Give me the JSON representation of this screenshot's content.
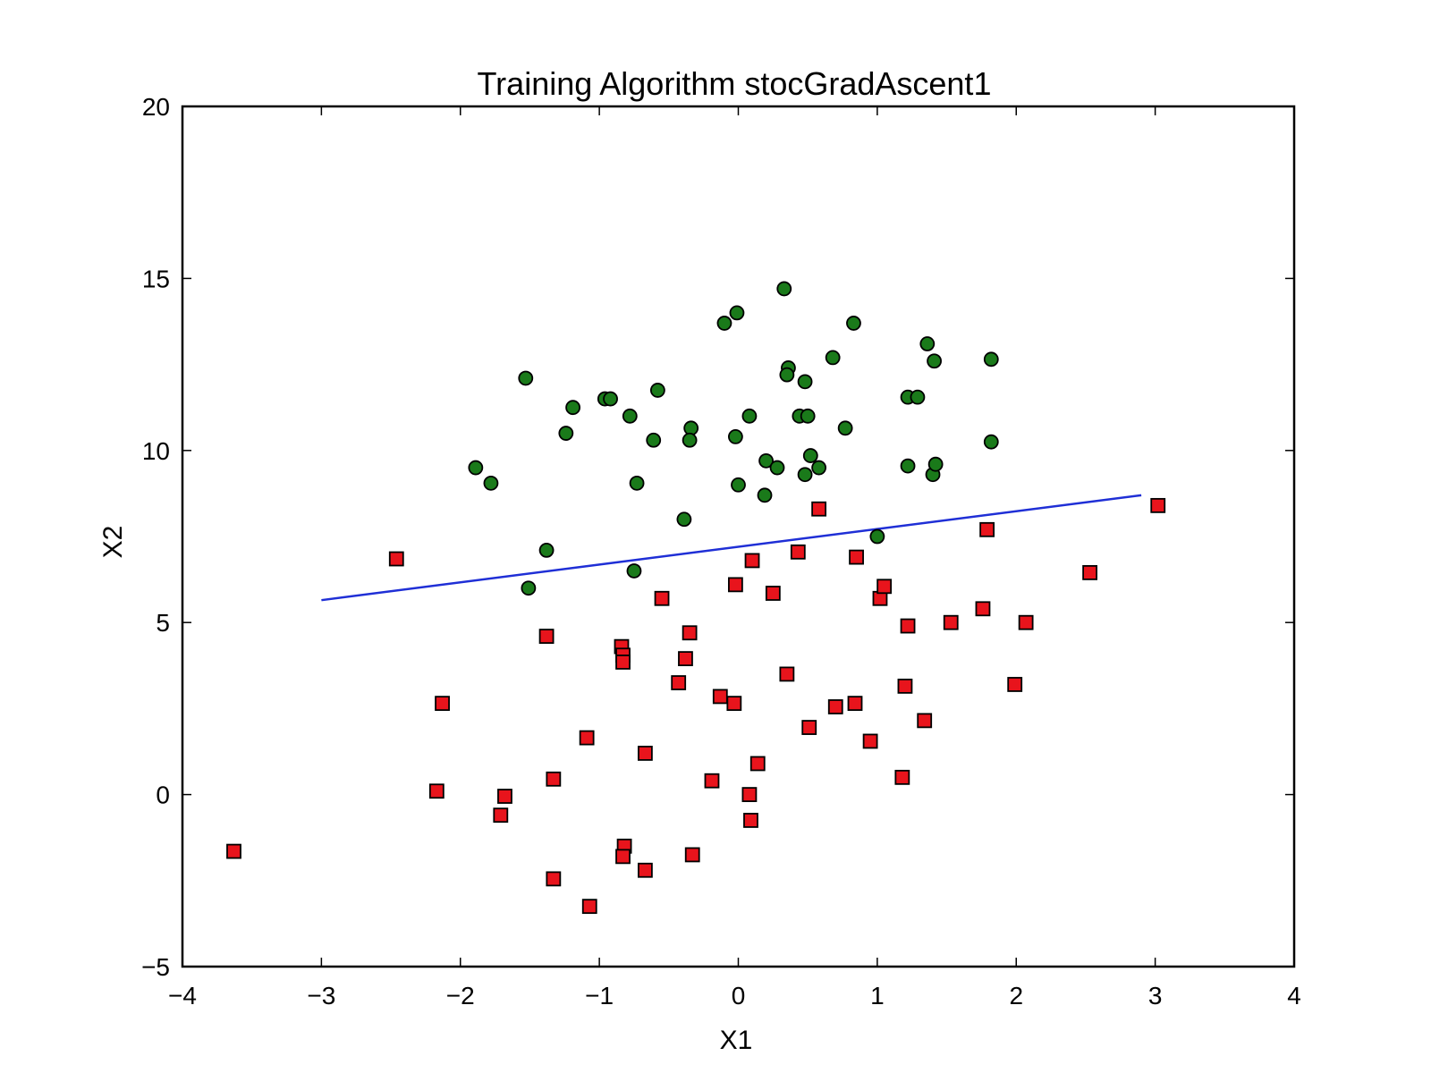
{
  "chart_data": {
    "type": "scatter",
    "title": "Training Algorithm stocGradAscent1",
    "xlabel": "X1",
    "ylabel": "X2",
    "xlim": [
      -4,
      4
    ],
    "ylim": [
      -5,
      20
    ],
    "x_ticks": [
      -4,
      -3,
      -2,
      -1,
      0,
      1,
      2,
      3,
      4
    ],
    "y_ticks": [
      -5,
      0,
      5,
      10,
      15,
      20
    ],
    "x_tick_labels": [
      "−4",
      "−3",
      "−2",
      "−1",
      "0",
      "1",
      "2",
      "3",
      "4"
    ],
    "y_tick_labels": [
      "−5",
      "0",
      "5",
      "10",
      "15",
      "20"
    ],
    "grid": false,
    "colors": {
      "class1": "#1a7a1a",
      "class0": "#e8141c",
      "boundary": "#1f2fd6",
      "marker_edge": "#000000"
    },
    "series": [
      {
        "marker": "circle",
        "color": "#1a7a1a",
        "points": [
          [
            -1.53,
            12.1
          ],
          [
            -1.89,
            9.5
          ],
          [
            -1.78,
            9.05
          ],
          [
            -1.38,
            7.1
          ],
          [
            -1.51,
            6.0
          ],
          [
            -1.24,
            10.5
          ],
          [
            -1.19,
            11.25
          ],
          [
            -0.96,
            11.5
          ],
          [
            -0.92,
            11.5
          ],
          [
            -0.78,
            11.0
          ],
          [
            -0.73,
            9.05
          ],
          [
            -0.75,
            6.5
          ],
          [
            -0.61,
            10.3
          ],
          [
            -0.58,
            11.75
          ],
          [
            -0.39,
            8.0
          ],
          [
            -0.34,
            10.65
          ],
          [
            -0.35,
            10.3
          ],
          [
            -0.1,
            13.7
          ],
          [
            -0.01,
            14.0
          ],
          [
            -0.02,
            10.4
          ],
          [
            0.0,
            9.0
          ],
          [
            0.08,
            11.0
          ],
          [
            0.2,
            9.7
          ],
          [
            0.19,
            8.7
          ],
          [
            0.28,
            9.5
          ],
          [
            0.33,
            14.7
          ],
          [
            0.36,
            12.4
          ],
          [
            0.35,
            12.2
          ],
          [
            0.44,
            11.0
          ],
          [
            0.48,
            12.0
          ],
          [
            0.5,
            11.0
          ],
          [
            0.52,
            9.85
          ],
          [
            0.48,
            9.3
          ],
          [
            0.58,
            9.5
          ],
          [
            0.68,
            12.7
          ],
          [
            0.77,
            10.65
          ],
          [
            0.83,
            13.7
          ],
          [
            1.0,
            7.5
          ],
          [
            1.22,
            11.55
          ],
          [
            1.29,
            11.55
          ],
          [
            1.22,
            9.55
          ],
          [
            1.36,
            13.1
          ],
          [
            1.4,
            9.3
          ],
          [
            1.41,
            12.6
          ],
          [
            1.42,
            9.6
          ],
          [
            1.82,
            12.65
          ],
          [
            1.82,
            10.25
          ]
        ]
      },
      {
        "marker": "square",
        "color": "#e8141c",
        "points": [
          [
            -3.63,
            -1.65
          ],
          [
            -2.46,
            6.85
          ],
          [
            -2.13,
            2.65
          ],
          [
            -2.17,
            0.1
          ],
          [
            -1.68,
            -0.05
          ],
          [
            -1.71,
            -0.6
          ],
          [
            -1.38,
            4.6
          ],
          [
            -1.33,
            0.45
          ],
          [
            -1.33,
            -2.45
          ],
          [
            -1.09,
            1.65
          ],
          [
            -1.07,
            -3.25
          ],
          [
            -0.84,
            4.3
          ],
          [
            -0.83,
            4.05
          ],
          [
            -0.83,
            3.85
          ],
          [
            -0.82,
            -1.5
          ],
          [
            -0.83,
            -1.8
          ],
          [
            -0.67,
            1.2
          ],
          [
            -0.67,
            -2.2
          ],
          [
            -0.55,
            5.7
          ],
          [
            -0.43,
            3.25
          ],
          [
            -0.38,
            3.95
          ],
          [
            -0.35,
            4.7
          ],
          [
            -0.33,
            -1.75
          ],
          [
            -0.19,
            0.4
          ],
          [
            -0.13,
            2.85
          ],
          [
            -0.02,
            6.1
          ],
          [
            -0.03,
            2.65
          ],
          [
            0.08,
            0.0
          ],
          [
            0.1,
            6.8
          ],
          [
            0.09,
            -0.75
          ],
          [
            0.14,
            0.9
          ],
          [
            0.25,
            5.85
          ],
          [
            0.35,
            3.5
          ],
          [
            0.43,
            7.05
          ],
          [
            0.51,
            1.95
          ],
          [
            0.58,
            8.3
          ],
          [
            0.7,
            2.55
          ],
          [
            0.85,
            6.9
          ],
          [
            0.84,
            2.65
          ],
          [
            0.95,
            1.55
          ],
          [
            1.02,
            5.7
          ],
          [
            1.05,
            6.05
          ],
          [
            1.18,
            0.5
          ],
          [
            1.2,
            3.15
          ],
          [
            1.22,
            4.9
          ],
          [
            1.34,
            2.15
          ],
          [
            1.53,
            5.0
          ],
          [
            1.76,
            5.4
          ],
          [
            1.79,
            7.7
          ],
          [
            1.99,
            3.2
          ],
          [
            2.07,
            5.0
          ],
          [
            2.53,
            6.45
          ],
          [
            3.02,
            8.4
          ]
        ]
      }
    ],
    "decision_boundary": {
      "type": "line",
      "x": [
        -3.0,
        2.9
      ],
      "y": [
        5.65,
        8.7
      ]
    }
  }
}
